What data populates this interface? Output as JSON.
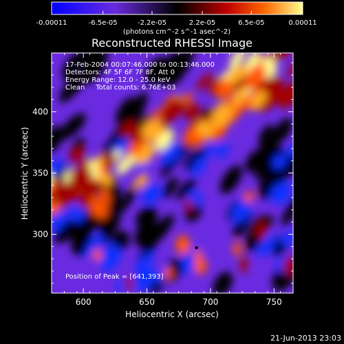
{
  "chart_data": {
    "type": "heatmap",
    "title": "Reconstructed RHESSI Image",
    "colorbar": {
      "tick_labels": [
        "-0.00011",
        "-6.5e-05",
        "-2.2e-05",
        "2.2e-05",
        "6.5e-05",
        "0.00011"
      ],
      "tick_values": [
        -0.00011,
        -6.5e-05,
        -2.2e-05,
        2.2e-05,
        6.5e-05,
        0.00011
      ],
      "units_label": "(photons cm^-2 s^-1 asec^-2)",
      "range": [
        -0.00011,
        0.00011
      ],
      "colors": [
        "#0000ff",
        "#6a2be0",
        "#000000",
        "#c00000",
        "#ff6a00",
        "#ffff80"
      ]
    },
    "xlabel": "Heliocentric X (arcsec)",
    "ylabel": "Heliocentric Y (arcsec)",
    "xlim": [
      575,
      765
    ],
    "ylim": [
      252,
      448
    ],
    "xticks": [
      600,
      650,
      700,
      750
    ],
    "yticks": [
      300,
      350,
      400
    ],
    "annotations": [
      "17-Feb-2004 00:07:46.000 to 00:13:46.000",
      "Detectors: 4F 5F 6F 7F 8F, Att 0",
      "Energy Range: 12.0 - 25.0 keV",
      "Clean     Total counts: 6.76E+03"
    ],
    "peak_label": "Position of Peak = [641,393]",
    "peak": [
      641,
      393
    ],
    "marker": [
      689,
      289
    ]
  },
  "footer": {
    "timestamp": "21-Jun-2013 23:03"
  }
}
